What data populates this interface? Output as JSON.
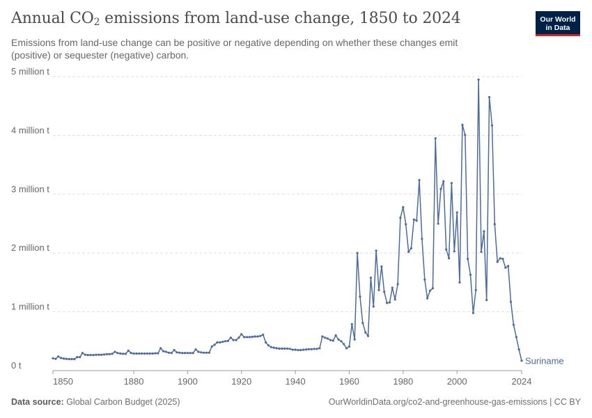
{
  "header": {
    "title_main": "Annual CO",
    "title_sub": "2",
    "title_rest": " emissions from land-use change, 1850 to 2024",
    "subtitle": "Emissions from land-use change can be positive or negative depending on whether these changes emit (positive) or sequester (negative) carbon.",
    "logo_line1": "Our World",
    "logo_line2": "in Data"
  },
  "footer": {
    "source_label": "Data source:",
    "source_text": " Global Carbon Budget (2025)",
    "right_text": "OurWorldinData.org/co2-and-greenhouse-gas-emissions | CC BY"
  },
  "colors": {
    "series": "#4c6a9c",
    "grid": "#dddddd",
    "axis": "#666666"
  },
  "chart_data": {
    "type": "line",
    "title": "Annual CO₂ emissions from land-use change, 1850 to 2024",
    "xlabel": "",
    "ylabel": "",
    "xlim": [
      1850,
      2024
    ],
    "ylim": [
      0,
      5000000
    ],
    "grid": "horizontal dashed",
    "legend": "end-of-line label",
    "y_ticks": [
      {
        "value": 0,
        "label": "0 t"
      },
      {
        "value": 1000000,
        "label": "1 million t"
      },
      {
        "value": 2000000,
        "label": "2 million t"
      },
      {
        "value": 3000000,
        "label": "3 million t"
      },
      {
        "value": 4000000,
        "label": "4 million t"
      },
      {
        "value": 5000000,
        "label": "5 million t"
      }
    ],
    "x_ticks": [
      {
        "value": 1850,
        "label": "1850"
      },
      {
        "value": 1880,
        "label": "1880"
      },
      {
        "value": 1900,
        "label": "1900"
      },
      {
        "value": 1920,
        "label": "1920"
      },
      {
        "value": 1940,
        "label": "1940"
      },
      {
        "value": 1960,
        "label": "1960"
      },
      {
        "value": 1980,
        "label": "1980"
      },
      {
        "value": 2000,
        "label": "2000"
      },
      {
        "value": 2024,
        "label": "2024"
      }
    ],
    "series": [
      {
        "name": "Suriname",
        "x": [
          1850,
          1851,
          1852,
          1853,
          1854,
          1855,
          1856,
          1857,
          1858,
          1859,
          1860,
          1861,
          1862,
          1863,
          1864,
          1865,
          1866,
          1867,
          1868,
          1869,
          1870,
          1871,
          1872,
          1873,
          1874,
          1875,
          1876,
          1877,
          1878,
          1879,
          1880,
          1881,
          1882,
          1883,
          1884,
          1885,
          1886,
          1887,
          1888,
          1889,
          1890,
          1891,
          1892,
          1893,
          1894,
          1895,
          1896,
          1897,
          1898,
          1899,
          1900,
          1901,
          1902,
          1903,
          1904,
          1905,
          1906,
          1907,
          1908,
          1909,
          1910,
          1911,
          1912,
          1913,
          1914,
          1915,
          1916,
          1917,
          1918,
          1919,
          1920,
          1921,
          1922,
          1923,
          1924,
          1925,
          1926,
          1927,
          1928,
          1929,
          1930,
          1931,
          1932,
          1933,
          1934,
          1935,
          1936,
          1937,
          1938,
          1939,
          1940,
          1941,
          1942,
          1943,
          1944,
          1945,
          1946,
          1947,
          1948,
          1949,
          1950,
          1951,
          1952,
          1953,
          1954,
          1955,
          1956,
          1957,
          1958,
          1959,
          1960,
          1961,
          1962,
          1963,
          1964,
          1965,
          1966,
          1967,
          1968,
          1969,
          1970,
          1971,
          1972,
          1973,
          1974,
          1975,
          1976,
          1977,
          1978,
          1979,
          1980,
          1981,
          1982,
          1983,
          1984,
          1985,
          1986,
          1987,
          1988,
          1989,
          1990,
          1991,
          1992,
          1993,
          1994,
          1995,
          1996,
          1997,
          1998,
          1999,
          2000,
          2001,
          2002,
          2003,
          2004,
          2005,
          2006,
          2007,
          2008,
          2009,
          2010,
          2011,
          2012,
          2013,
          2014,
          2015,
          2016,
          2017,
          2018,
          2019,
          2020,
          2021,
          2022,
          2023,
          2024
        ],
        "values": [
          210000,
          200000,
          240000,
          215000,
          205000,
          200000,
          195000,
          195000,
          195000,
          230000,
          230000,
          300000,
          270000,
          265000,
          265000,
          265000,
          270000,
          270000,
          270000,
          275000,
          280000,
          280000,
          285000,
          320000,
          300000,
          290000,
          285000,
          285000,
          340000,
          300000,
          290000,
          290000,
          290000,
          290000,
          290000,
          290000,
          290000,
          290000,
          295000,
          295000,
          380000,
          330000,
          320000,
          305000,
          300000,
          350000,
          310000,
          305000,
          300000,
          300000,
          300000,
          300000,
          300000,
          360000,
          320000,
          310000,
          305000,
          305000,
          305000,
          410000,
          440000,
          480000,
          480000,
          490000,
          500000,
          505000,
          560000,
          520000,
          520000,
          560000,
          620000,
          570000,
          570000,
          570000,
          575000,
          580000,
          580000,
          590000,
          610000,
          480000,
          430000,
          400000,
          390000,
          380000,
          375000,
          375000,
          375000,
          375000,
          370000,
          355000,
          355000,
          350000,
          350000,
          355000,
          360000,
          365000,
          365000,
          370000,
          370000,
          380000,
          580000,
          560000,
          545000,
          520000,
          510000,
          600000,
          530000,
          500000,
          450000,
          380000,
          410000,
          790000,
          530000,
          2000000,
          1260000,
          810000,
          650000,
          590000,
          1580000,
          1090000,
          2040000,
          1370000,
          1770000,
          1340000,
          1150000,
          1160000,
          1410000,
          1210000,
          1470000,
          2600000,
          2780000,
          2490000,
          2020000,
          2080000,
          2570000,
          2550000,
          3240000,
          2240000,
          1550000,
          1230000,
          1360000,
          1400000,
          3950000,
          2500000,
          3090000,
          3220000,
          2060000,
          1910000,
          3190000,
          2030000,
          2690000,
          1500000,
          4180000,
          4010000,
          1900000,
          1630000,
          980000,
          1370000,
          4950000,
          2020000,
          2370000,
          1200000,
          4650000,
          4170000,
          2490000,
          1850000,
          1910000,
          1900000,
          1750000,
          1780000,
          1170000,
          780000,
          570000,
          360000,
          170000
        ]
      }
    ]
  }
}
